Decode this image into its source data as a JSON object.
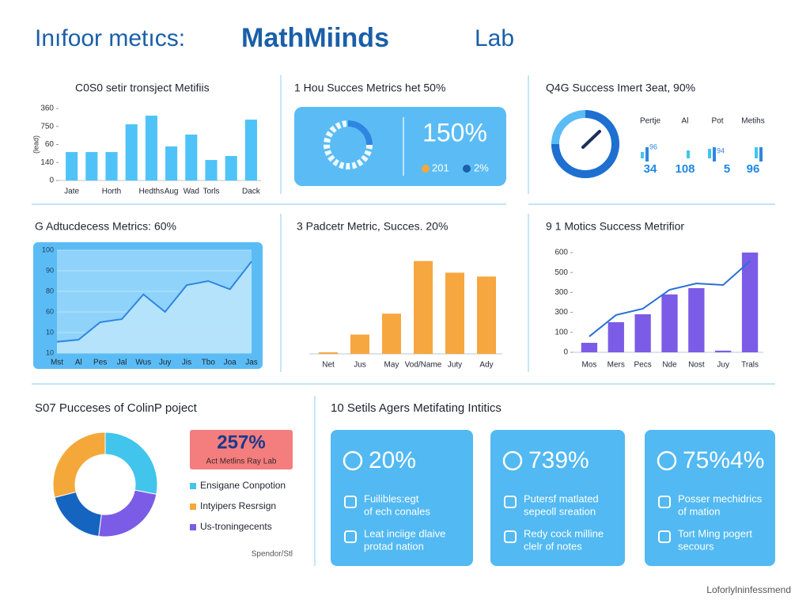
{
  "title": [
    "Inıfoor metıcs:",
    "MathMiinds",
    "Lab"
  ],
  "chart_data": [
    {
      "type": "bar",
      "title": "C0S0 setir tronsject Metifiis",
      "ylabel": "(lead)",
      "categories": [
        "Jate",
        null,
        "Horth",
        null,
        "Hedths",
        "Aug",
        "Wad",
        "Torls",
        null,
        "Dack"
      ],
      "values": [
        158,
        158,
        158,
        312,
        360,
        189,
        255,
        114,
        136,
        338
      ],
      "color": "#4fc3f7",
      "ylim": [
        0,
        400
      ],
      "yticks": [
        0,
        {
          "value": 100,
          "label": "140"
        },
        {
          "value": 200,
          "label": "60"
        },
        {
          "value": 300,
          "label": "750"
        },
        {
          "value": 400,
          "label": "360"
        }
      ]
    },
    {
      "type": "area",
      "title": "G Adtucdecess Metrics: 60%",
      "categories": [
        "Mst",
        "Al",
        "Pes",
        "Jal",
        "Wus",
        "Juy",
        "Jis",
        "Tbo",
        "Joa",
        "Jas"
      ],
      "values": [
        11,
        13,
        30,
        33,
        57,
        40,
        66,
        70,
        62,
        89
      ],
      "color": "#2f86e0",
      "ylim": [
        0,
        100
      ],
      "yticks": [
        {
          "value": 0,
          "label": "10"
        },
        {
          "value": 20,
          "label": "10"
        },
        {
          "value": 40,
          "label": "60"
        },
        {
          "value": 60,
          "label": "80"
        },
        {
          "value": 80,
          "label": "90"
        },
        100
      ]
    },
    {
      "type": "bar",
      "title": "3 Padcetr Metric, Succes. 20%",
      "categories": [
        "Net",
        "Jus",
        "May",
        "Vod/Name",
        "Juty",
        "Ady"
      ],
      "values": [
        2,
        25,
        52,
        120,
        105,
        100
      ],
      "color": "#f7a740",
      "ylim": [
        0,
        130
      ]
    },
    {
      "type": "bar",
      "title": "9 1 Motics Success Metrifior",
      "categories": [
        "Mos",
        "Mers",
        "Pecs",
        "Nde",
        "Nost",
        "Juy",
        "Trals"
      ],
      "values": [
        57,
        181,
        229,
        348,
        386,
        10,
        600
      ],
      "color": "#7b5ce6",
      "line": {
        "color": "#2a6fd6",
        "values": [
          95,
          224,
          262,
          376,
          414,
          405,
          548
        ]
      },
      "ylim": [
        0,
        600
      ],
      "yticks": [
        0,
        {
          "value": 120,
          "label": "100"
        },
        {
          "value": 240,
          "label": "300"
        },
        {
          "value": 360,
          "label": "300"
        },
        {
          "value": 480,
          "label": "500"
        },
        600
      ]
    },
    {
      "type": "pie",
      "title": "S07 Pucceses of ColinP poject",
      "categories": [
        "Ensigane Conpotion",
        "Us-troningecents",
        null,
        "Intyipers Resrsign"
      ],
      "values": [
        28,
        24,
        19,
        29
      ],
      "colors": [
        "#42c5ec",
        "#7b5ce6",
        "#1565c0",
        "#f5a83a"
      ],
      "annotation": "257%",
      "annotation_label": "Act Metlins Ray Lab",
      "note": "Spendor/Stl"
    }
  ],
  "kpi_panels": [
    {
      "title": "1 Hou Succes Metrics het 50%",
      "value": "150%",
      "legend": [
        "201",
        "2%"
      ]
    },
    {
      "title": "Q4G Success Imert 3eat, 90%",
      "items": [
        {
          "label": "Pertje",
          "small": "96",
          "big": "34"
        },
        {
          "label": "Al",
          "big": "108"
        },
        {
          "label": "Pot",
          "small": "94",
          "big": "5"
        },
        {
          "label": "Metihs",
          "big": "96"
        }
      ]
    }
  ],
  "cards_section": {
    "title": "10 Setils Agers Metifating Intitics",
    "cards": [
      {
        "value": "20%",
        "items": [
          [
            "Fuilibles:egt",
            "of ech conales"
          ],
          [
            "Leat inciige dlaive",
            "protad nation"
          ]
        ]
      },
      {
        "value": "739%",
        "items": [
          [
            "Putersf matlated",
            "sepeoll sreation"
          ],
          [
            "Redy cock milline",
            "clelr of notes"
          ]
        ]
      },
      {
        "value": "75%4%",
        "items": [
          [
            "Posser mechidrics",
            "of mation"
          ],
          [
            "Tort Ming pogert",
            "secours"
          ]
        ]
      }
    ]
  },
  "footer": "Loforlylninfessmend"
}
